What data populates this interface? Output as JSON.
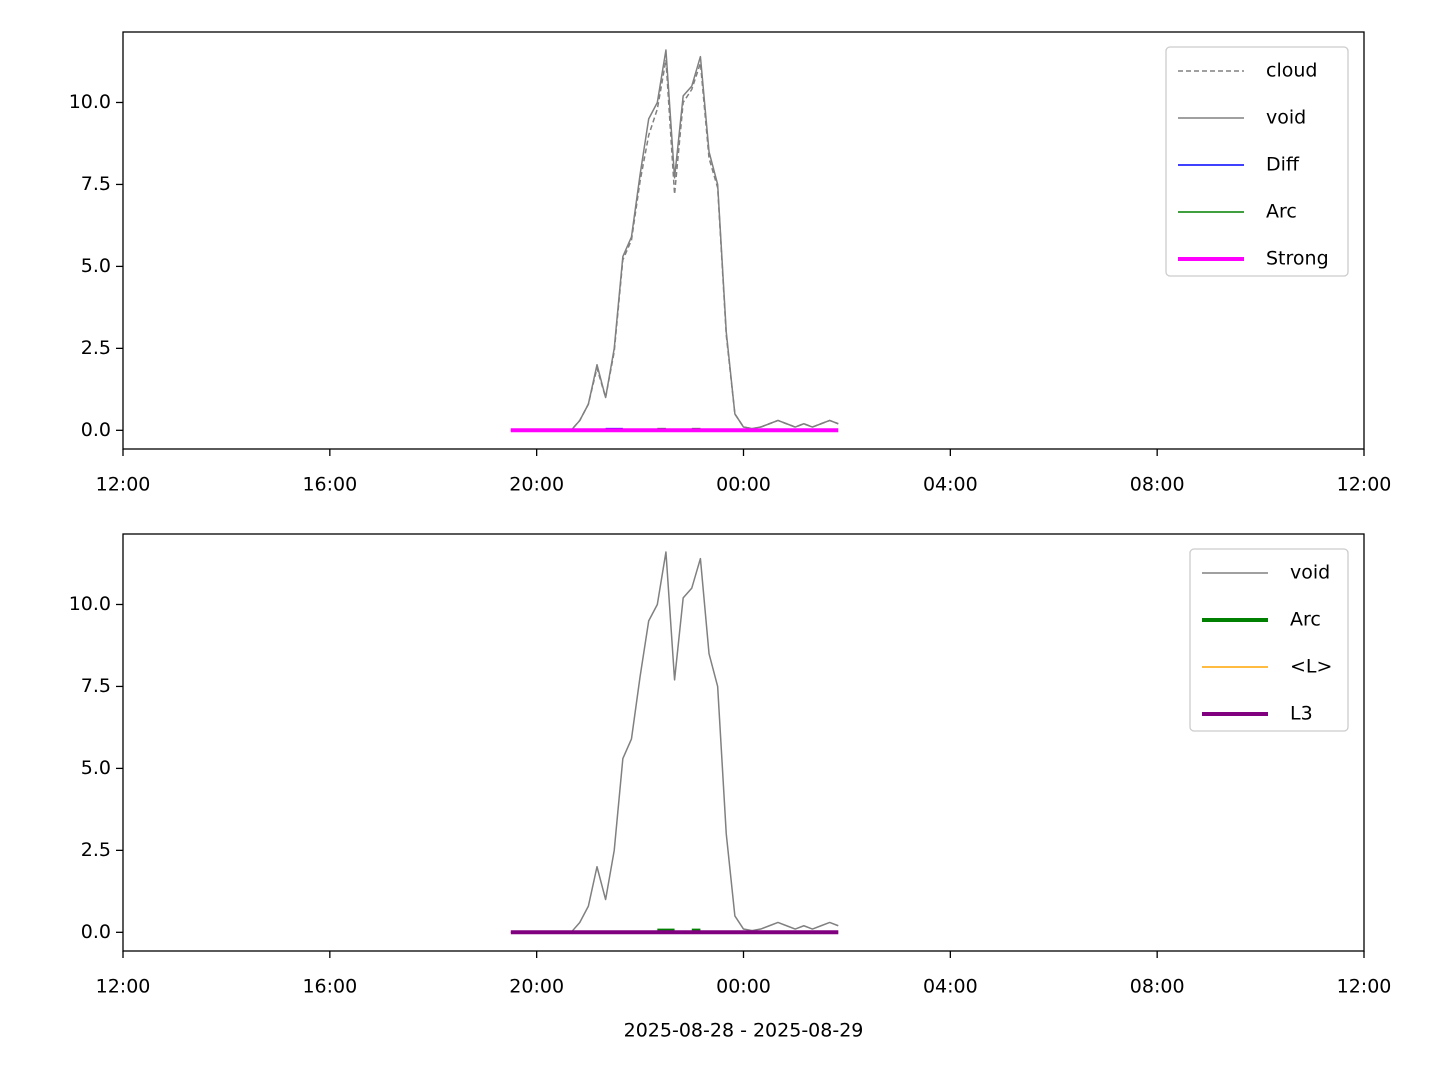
{
  "chart_data": [
    {
      "type": "line",
      "x": [
        "2025-08-28T19:30",
        "2025-08-28T19:40",
        "2025-08-28T19:50",
        "2025-08-28T20:00",
        "2025-08-28T20:10",
        "2025-08-28T20:20",
        "2025-08-28T20:30",
        "2025-08-28T20:40",
        "2025-08-28T20:50",
        "2025-08-28T21:00",
        "2025-08-28T21:10",
        "2025-08-28T21:20",
        "2025-08-28T21:30",
        "2025-08-28T21:40",
        "2025-08-28T21:50",
        "2025-08-28T22:00",
        "2025-08-28T22:10",
        "2025-08-28T22:20",
        "2025-08-28T22:30",
        "2025-08-28T22:40",
        "2025-08-28T22:50",
        "2025-08-28T23:00",
        "2025-08-28T23:10",
        "2025-08-28T23:20",
        "2025-08-28T23:30",
        "2025-08-28T23:40",
        "2025-08-28T23:50",
        "2025-08-29T00:00",
        "2025-08-29T00:10",
        "2025-08-29T00:20",
        "2025-08-29T00:30",
        "2025-08-29T00:40",
        "2025-08-29T00:50",
        "2025-08-29T01:00",
        "2025-08-29T01:10",
        "2025-08-29T01:20",
        "2025-08-29T01:30",
        "2025-08-29T01:40",
        "2025-08-29T01:50"
      ],
      "series": [
        {
          "name": "cloud",
          "color": "#808080",
          "linestyle": "dashed",
          "linewidth": 1.5,
          "values": [
            0,
            0,
            0,
            0,
            0,
            0,
            0,
            0,
            0.3,
            0.8,
            1.9,
            1.0,
            2.4,
            5.2,
            5.8,
            7.6,
            9.0,
            9.8,
            11.3,
            7.2,
            10.0,
            10.4,
            11.2,
            8.3,
            7.4,
            2.9,
            0.5,
            0.1,
            0.05,
            0.1,
            0.2,
            0.3,
            0.2,
            0.1,
            0.2,
            0.1,
            0.2,
            0.3,
            0.2
          ]
        },
        {
          "name": "void",
          "color": "#808080",
          "linestyle": "solid",
          "linewidth": 1.5,
          "values": [
            0,
            0,
            0,
            0,
            0,
            0,
            0,
            0,
            0.3,
            0.8,
            2.0,
            1.0,
            2.5,
            5.3,
            5.9,
            7.8,
            9.5,
            10.0,
            11.6,
            7.7,
            10.2,
            10.5,
            11.4,
            8.5,
            7.5,
            3.0,
            0.5,
            0.1,
            0.05,
            0.1,
            0.2,
            0.3,
            0.2,
            0.1,
            0.2,
            0.1,
            0.2,
            0.3,
            0.2
          ]
        },
        {
          "name": "Diff",
          "color": "#0000ff",
          "linestyle": "solid",
          "linewidth": 1.5,
          "values": [
            null,
            null,
            null,
            null,
            null,
            null,
            null,
            null,
            null,
            null,
            null,
            0.05,
            0.05,
            0.05,
            null,
            null,
            null,
            null,
            null,
            null,
            null,
            null,
            null,
            null,
            null,
            null,
            null,
            null,
            null,
            null,
            null,
            null,
            null,
            null,
            null,
            null,
            null,
            null,
            null
          ]
        },
        {
          "name": "Arc",
          "color": "#008000",
          "linestyle": "solid",
          "linewidth": 1.5,
          "values": [
            null,
            null,
            null,
            null,
            null,
            null,
            null,
            null,
            null,
            null,
            null,
            null,
            null,
            null,
            null,
            null,
            null,
            0.05,
            0.05,
            null,
            null,
            0.05,
            0.05,
            null,
            null,
            null,
            null,
            null,
            null,
            null,
            null,
            null,
            null,
            null,
            null,
            null,
            null,
            null,
            null
          ]
        },
        {
          "name": "Strong",
          "color": "#ff00ff",
          "linestyle": "solid",
          "linewidth": 4,
          "values": [
            0,
            0,
            0,
            0,
            0,
            0,
            0,
            0,
            0,
            0,
            0,
            0,
            0,
            0,
            0,
            0,
            0,
            0,
            0,
            0,
            0,
            0,
            0,
            0,
            0,
            0,
            0,
            0,
            0,
            0,
            0,
            0,
            0,
            0,
            0,
            0,
            0,
            0,
            0
          ]
        }
      ],
      "xlim": [
        "2025-08-28T12:00",
        "2025-08-29T12:00"
      ],
      "xticks": [
        {
          "value": "2025-08-28T12:00",
          "label": "12:00"
        },
        {
          "value": "2025-08-28T16:00",
          "label": "16:00"
        },
        {
          "value": "2025-08-28T20:00",
          "label": "20:00"
        },
        {
          "value": "2025-08-29T00:00",
          "label": "00:00"
        },
        {
          "value": "2025-08-29T04:00",
          "label": "04:00"
        },
        {
          "value": "2025-08-29T08:00",
          "label": "08:00"
        },
        {
          "value": "2025-08-29T12:00",
          "label": "12:00"
        }
      ],
      "ylim": [
        -0.57,
        12.15
      ],
      "yticks": [
        {
          "value": 0,
          "label": "0.0"
        },
        {
          "value": 2.5,
          "label": "2.5"
        },
        {
          "value": 5,
          "label": "5.0"
        },
        {
          "value": 7.5,
          "label": "7.5"
        },
        {
          "value": 10,
          "label": "10.0"
        }
      ],
      "legend": "upper right"
    },
    {
      "type": "line",
      "x": [
        "2025-08-28T19:30",
        "2025-08-28T19:40",
        "2025-08-28T19:50",
        "2025-08-28T20:00",
        "2025-08-28T20:10",
        "2025-08-28T20:20",
        "2025-08-28T20:30",
        "2025-08-28T20:40",
        "2025-08-28T20:50",
        "2025-08-28T21:00",
        "2025-08-28T21:10",
        "2025-08-28T21:20",
        "2025-08-28T21:30",
        "2025-08-28T21:40",
        "2025-08-28T21:50",
        "2025-08-28T22:00",
        "2025-08-28T22:10",
        "2025-08-28T22:20",
        "2025-08-28T22:30",
        "2025-08-28T22:40",
        "2025-08-28T22:50",
        "2025-08-28T23:00",
        "2025-08-28T23:10",
        "2025-08-28T23:20",
        "2025-08-28T23:30",
        "2025-08-28T23:40",
        "2025-08-28T23:50",
        "2025-08-29T00:00",
        "2025-08-29T00:10",
        "2025-08-29T00:20",
        "2025-08-29T00:30",
        "2025-08-29T00:40",
        "2025-08-29T00:50",
        "2025-08-29T01:00",
        "2025-08-29T01:10",
        "2025-08-29T01:20",
        "2025-08-29T01:30",
        "2025-08-29T01:40",
        "2025-08-29T01:50"
      ],
      "series": [
        {
          "name": "void",
          "color": "#808080",
          "linestyle": "solid",
          "linewidth": 1.5,
          "values": [
            0,
            0,
            0,
            0,
            0,
            0,
            0,
            0,
            0.3,
            0.8,
            2.0,
            1.0,
            2.5,
            5.3,
            5.9,
            7.8,
            9.5,
            10.0,
            11.6,
            7.7,
            10.2,
            10.5,
            11.4,
            8.5,
            7.5,
            3.0,
            0.5,
            0.1,
            0.05,
            0.1,
            0.2,
            0.3,
            0.2,
            0.1,
            0.2,
            0.1,
            0.2,
            0.3,
            0.2
          ]
        },
        {
          "name": "Arc",
          "color": "#008000",
          "linestyle": "solid",
          "linewidth": 4,
          "values": [
            null,
            null,
            null,
            null,
            null,
            null,
            null,
            null,
            null,
            null,
            null,
            null,
            null,
            null,
            null,
            null,
            null,
            0.05,
            0.05,
            0.05,
            null,
            0.05,
            0.05,
            null,
            null,
            null,
            null,
            null,
            null,
            null,
            null,
            null,
            null,
            null,
            null,
            null,
            null,
            null,
            null
          ]
        },
        {
          "name": "<L>",
          "color": "#ffa500",
          "linestyle": "solid",
          "linewidth": 1.5,
          "values": [
            0,
            0,
            0,
            0,
            0,
            0,
            0,
            0,
            0,
            0,
            0,
            0,
            0,
            0,
            0,
            0,
            0,
            0,
            0,
            0,
            0,
            0,
            0,
            0,
            0,
            0,
            0,
            0,
            0,
            0,
            0,
            0,
            0,
            0,
            0,
            0,
            0,
            0,
            0
          ]
        },
        {
          "name": "L3",
          "color": "#800080",
          "linestyle": "solid",
          "linewidth": 4,
          "values": [
            0,
            0,
            0,
            0,
            0,
            0,
            0,
            0,
            0,
            0,
            0,
            0,
            0,
            0,
            0,
            0,
            0,
            0,
            0,
            0,
            0,
            0,
            0,
            0,
            0,
            0,
            0,
            0,
            0,
            0,
            0,
            0,
            0,
            0,
            0,
            0,
            0,
            0,
            0
          ]
        }
      ],
      "xlim": [
        "2025-08-28T12:00",
        "2025-08-29T12:00"
      ],
      "xticks": [
        {
          "value": "2025-08-28T12:00",
          "label": "12:00"
        },
        {
          "value": "2025-08-28T16:00",
          "label": "16:00"
        },
        {
          "value": "2025-08-28T20:00",
          "label": "20:00"
        },
        {
          "value": "2025-08-29T00:00",
          "label": "00:00"
        },
        {
          "value": "2025-08-29T04:00",
          "label": "04:00"
        },
        {
          "value": "2025-08-29T08:00",
          "label": "08:00"
        },
        {
          "value": "2025-08-29T12:00",
          "label": "12:00"
        }
      ],
      "ylim": [
        -0.57,
        12.15
      ],
      "yticks": [
        {
          "value": 0,
          "label": "0.0"
        },
        {
          "value": 2.5,
          "label": "2.5"
        },
        {
          "value": 5,
          "label": "5.0"
        },
        {
          "value": 7.5,
          "label": "7.5"
        },
        {
          "value": 10,
          "label": "10.0"
        }
      ],
      "xlabel": "2025-08-28 - 2025-08-29",
      "legend": "upper right"
    }
  ]
}
